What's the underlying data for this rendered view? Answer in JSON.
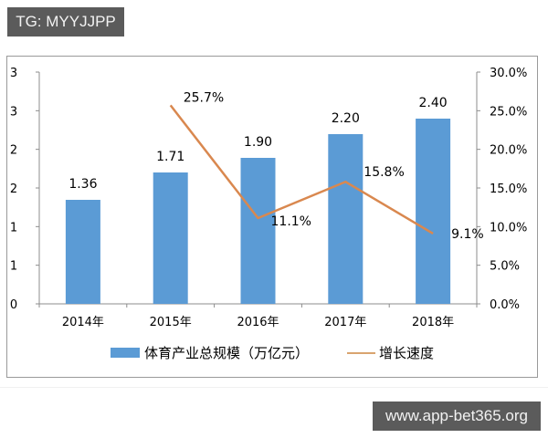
{
  "watermark_top": "TG: MYYJJPP",
  "watermark_bottom": "www.app-bet365.org",
  "colors": {
    "bar": "#5b9bd5",
    "line": "#ed7d31",
    "axis": "#8c8c8c",
    "text": "#000000",
    "tag_bg": "#5b5b5b"
  },
  "chart_data": {
    "type": "bar+line",
    "title": "",
    "categories": [
      "2014年",
      "2015年",
      "2016年",
      "2017年",
      "2018年"
    ],
    "series": [
      {
        "name": "体育产业总规模（万亿元）",
        "type": "bar",
        "axis": "left",
        "values": [
          1.36,
          1.71,
          1.9,
          2.2,
          2.4
        ],
        "labels": [
          "1.36",
          "1.71",
          "1.90",
          "2.20",
          "2.40"
        ]
      },
      {
        "name": "增长速度",
        "type": "line",
        "axis": "right",
        "values": [
          null,
          25.7,
          11.1,
          15.8,
          9.1
        ],
        "labels": [
          "",
          "25.7%",
          "11.1%",
          "15.8%",
          "9.1%"
        ]
      }
    ],
    "left_axis": {
      "ticks": [
        "0",
        "1",
        "1",
        "2",
        "2",
        "3",
        "3"
      ],
      "ylim": [
        0,
        3
      ]
    },
    "right_axis": {
      "ticks": [
        "0.0%",
        "5.0%",
        "10.0%",
        "15.0%",
        "20.0%",
        "25.0%",
        "30.0%"
      ],
      "ylim": [
        0,
        30
      ]
    },
    "legend": {
      "position": "bottom",
      "entries": [
        "体育产业总规模（万亿元）",
        "增长速度"
      ]
    },
    "grid": false
  }
}
